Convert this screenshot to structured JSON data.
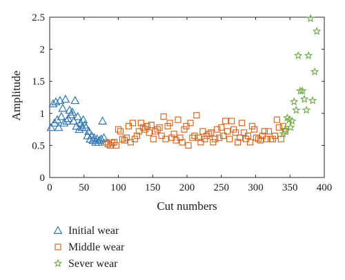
{
  "chart_data": {
    "type": "scatter",
    "xlabel": "Cut numbers",
    "ylabel": "Amplitude",
    "xlim": [
      0,
      400
    ],
    "ylim": [
      0,
      2.5
    ],
    "xticks": [
      0,
      50,
      100,
      150,
      200,
      250,
      300,
      350,
      400
    ],
    "yticks": [
      0,
      0.5,
      1,
      1.5,
      2,
      2.5
    ],
    "xtick_labels": [
      "0",
      "50",
      "100",
      "150",
      "200",
      "250",
      "300",
      "350",
      "400"
    ],
    "ytick_labels": [
      "0",
      "0.5",
      "1",
      "1.5",
      "2",
      "2.5"
    ],
    "grid": false,
    "legend_position": "bottom-left, below plot",
    "series": [
      {
        "name": "Initial wear",
        "marker": "triangle",
        "color": "#2E75B6",
        "points": [
          [
            2,
            0.78
          ],
          [
            5,
            1.15
          ],
          [
            7,
            0.85
          ],
          [
            9,
            1.18
          ],
          [
            11,
            0.9
          ],
          [
            13,
            0.78
          ],
          [
            15,
            1.2
          ],
          [
            17,
            0.95
          ],
          [
            19,
            1.08
          ],
          [
            21,
            0.85
          ],
          [
            23,
            1.22
          ],
          [
            25,
            0.88
          ],
          [
            27,
            0.92
          ],
          [
            29,
            1.05
          ],
          [
            31,
            0.98
          ],
          [
            33,
            1.02
          ],
          [
            35,
            0.88
          ],
          [
            37,
            1.2
          ],
          [
            39,
            0.8
          ],
          [
            41,
            0.95
          ],
          [
            43,
            0.75
          ],
          [
            45,
            0.85
          ],
          [
            47,
            0.78
          ],
          [
            49,
            0.9
          ],
          [
            51,
            0.82
          ],
          [
            53,
            0.78
          ],
          [
            55,
            0.65
          ],
          [
            57,
            0.72
          ],
          [
            59,
            0.6
          ],
          [
            61,
            0.65
          ],
          [
            63,
            0.58
          ],
          [
            65,
            0.62
          ],
          [
            67,
            0.55
          ],
          [
            69,
            0.6
          ],
          [
            71,
            0.55
          ],
          [
            73,
            0.58
          ],
          [
            75,
            0.6
          ],
          [
            77,
            0.88
          ],
          [
            79,
            0.62
          ]
        ]
      },
      {
        "name": "Middle wear",
        "marker": "square",
        "color": "#D9651E",
        "points": [
          [
            82,
            0.55
          ],
          [
            85,
            0.52
          ],
          [
            88,
            0.5
          ],
          [
            91,
            0.54
          ],
          [
            94,
            0.55
          ],
          [
            97,
            0.5
          ],
          [
            100,
            0.75
          ],
          [
            103,
            0.72
          ],
          [
            106,
            0.6
          ],
          [
            109,
            0.58
          ],
          [
            112,
            0.62
          ],
          [
            115,
            0.8
          ],
          [
            118,
            0.55
          ],
          [
            121,
            0.85
          ],
          [
            124,
            0.6
          ],
          [
            127,
            0.65
          ],
          [
            130,
            0.72
          ],
          [
            133,
            0.85
          ],
          [
            136,
            0.78
          ],
          [
            139,
            0.75
          ],
          [
            142,
            0.8
          ],
          [
            145,
            0.7
          ],
          [
            148,
            0.82
          ],
          [
            151,
            0.6
          ],
          [
            154,
            0.72
          ],
          [
            157,
            0.75
          ],
          [
            160,
            0.78
          ],
          [
            163,
            0.65
          ],
          [
            166,
            0.95
          ],
          [
            169,
            0.6
          ],
          [
            172,
            0.8
          ],
          [
            175,
            0.85
          ],
          [
            178,
            0.62
          ],
          [
            181,
            0.68
          ],
          [
            184,
            0.58
          ],
          [
            187,
            0.9
          ],
          [
            190,
            0.62
          ],
          [
            193,
            0.55
          ],
          [
            196,
            0.75
          ],
          [
            199,
            0.8
          ],
          [
            202,
            0.5
          ],
          [
            205,
            0.85
          ],
          [
            208,
            0.62
          ],
          [
            211,
            0.65
          ],
          [
            214,
            0.97
          ],
          [
            217,
            0.62
          ],
          [
            220,
            0.55
          ],
          [
            223,
            0.72
          ],
          [
            226,
            0.6
          ],
          [
            229,
            0.65
          ],
          [
            232,
            0.68
          ],
          [
            235,
            0.7
          ],
          [
            238,
            0.55
          ],
          [
            241,
            0.6
          ],
          [
            244,
            0.75
          ],
          [
            247,
            0.62
          ],
          [
            250,
            0.78
          ],
          [
            253,
            0.65
          ],
          [
            256,
            0.88
          ],
          [
            259,
            0.72
          ],
          [
            262,
            0.6
          ],
          [
            265,
            0.88
          ],
          [
            268,
            0.75
          ],
          [
            271,
            0.7
          ],
          [
            274,
            0.55
          ],
          [
            277,
            0.62
          ],
          [
            280,
            0.85
          ],
          [
            283,
            0.7
          ],
          [
            286,
            0.6
          ],
          [
            289,
            0.65
          ],
          [
            292,
            0.55
          ],
          [
            295,
            0.8
          ],
          [
            298,
            0.75
          ],
          [
            301,
            0.62
          ],
          [
            304,
            0.6
          ],
          [
            307,
            0.58
          ],
          [
            310,
            0.65
          ],
          [
            313,
            0.72
          ],
          [
            316,
            0.6
          ],
          [
            319,
            0.72
          ],
          [
            322,
            0.6
          ],
          [
            325,
            0.6
          ],
          [
            328,
            0.65
          ],
          [
            331,
            0.9
          ],
          [
            334,
            0.78
          ],
          [
            337,
            0.6
          ],
          [
            340,
            0.8
          ],
          [
            343,
            0.72
          ]
        ]
      },
      {
        "name": "Sever wear",
        "marker": "star",
        "color": "#70AD47",
        "points": [
          [
            340,
            0.68
          ],
          [
            343,
            0.75
          ],
          [
            346,
            0.93
          ],
          [
            349,
            0.9
          ],
          [
            351,
            0.78
          ],
          [
            353,
            0.88
          ],
          [
            356,
            1.18
          ],
          [
            359,
            1.05
          ],
          [
            362,
            1.9
          ],
          [
            365,
            1.35
          ],
          [
            368,
            1.35
          ],
          [
            371,
            1.22
          ],
          [
            374,
            1.05
          ],
          [
            377,
            1.9
          ],
          [
            380,
            2.48
          ],
          [
            383,
            1.2
          ],
          [
            386,
            1.65
          ],
          [
            389,
            2.28
          ]
        ]
      }
    ]
  }
}
